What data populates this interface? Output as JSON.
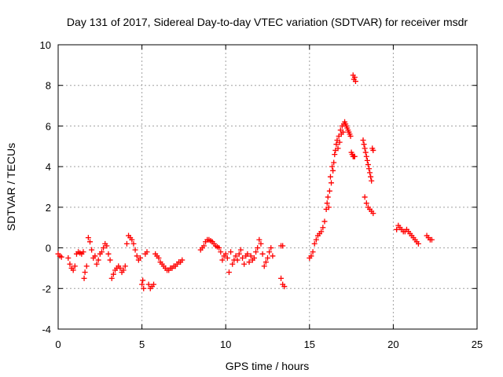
{
  "chart_data": {
    "type": "scatter",
    "title": "Day 131 of 2017, Sidereal Day-to-day VTEC variation (SDTVAR) for receiver msdr",
    "xlabel": "GPS time / hours",
    "ylabel": "SDTVAR / TECUs",
    "xlim": [
      0,
      25
    ],
    "ylim": [
      -4,
      10
    ],
    "xticks": [
      0,
      5,
      10,
      15,
      20,
      25
    ],
    "yticks": [
      -4,
      -2,
      0,
      2,
      4,
      6,
      8,
      10
    ],
    "grid": true,
    "marker": "+",
    "color": "#ff0000",
    "series": [
      {
        "name": "SDTVAR",
        "x": [
          0.0,
          0.1,
          0.2,
          0.6,
          0.7,
          0.8,
          0.9,
          1.0,
          1.1,
          1.2,
          1.3,
          1.4,
          1.5,
          1.55,
          1.6,
          1.7,
          1.8,
          1.9,
          2.0,
          2.1,
          2.2,
          2.3,
          2.4,
          2.5,
          2.6,
          2.7,
          2.8,
          2.9,
          3.0,
          3.1,
          3.2,
          3.3,
          3.4,
          3.5,
          3.6,
          3.7,
          3.8,
          3.9,
          4.0,
          4.1,
          4.2,
          4.3,
          4.4,
          4.5,
          4.6,
          4.7,
          4.8,
          4.9,
          5.0,
          5.05,
          5.1,
          5.2,
          5.3,
          5.4,
          5.5,
          5.6,
          5.7,
          5.8,
          5.9,
          6.0,
          6.1,
          6.2,
          6.3,
          6.4,
          6.5,
          6.6,
          6.7,
          6.8,
          6.9,
          7.0,
          7.1,
          7.2,
          7.3,
          7.4,
          8.5,
          8.6,
          8.7,
          8.8,
          8.9,
          9.0,
          9.1,
          9.2,
          9.3,
          9.4,
          9.5,
          9.6,
          9.7,
          9.8,
          9.9,
          10.0,
          10.1,
          10.2,
          10.3,
          10.4,
          10.5,
          10.6,
          10.7,
          10.8,
          10.9,
          11.0,
          11.1,
          11.2,
          11.3,
          11.4,
          11.5,
          11.6,
          11.7,
          11.8,
          11.9,
          12.0,
          12.1,
          12.2,
          12.3,
          12.4,
          12.5,
          12.6,
          12.7,
          12.8,
          13.3,
          13.4,
          13.3,
          13.4,
          13.5,
          15.0,
          15.1,
          15.2,
          15.3,
          15.4,
          15.5,
          15.6,
          15.7,
          15.8,
          15.9,
          16.0,
          16.05,
          16.1,
          16.15,
          16.2,
          16.25,
          16.3,
          16.35,
          16.4,
          16.45,
          16.5,
          16.55,
          16.6,
          16.65,
          16.7,
          16.75,
          16.8,
          16.85,
          16.9,
          16.95,
          17.0,
          17.05,
          17.1,
          17.15,
          17.2,
          17.25,
          17.3,
          17.35,
          17.4,
          17.45,
          17.5,
          17.55,
          17.6,
          17.65,
          17.7,
          17.6,
          17.65,
          17.7,
          17.75,
          18.2,
          18.25,
          18.3,
          18.35,
          18.4,
          18.45,
          18.5,
          18.55,
          18.6,
          18.65,
          18.7,
          18.75,
          18.8,
          18.3,
          18.4,
          18.5,
          18.6,
          18.7,
          18.8,
          20.2,
          20.3,
          20.4,
          20.5,
          20.6,
          20.7,
          20.8,
          20.9,
          21.0,
          21.1,
          21.2,
          21.3,
          21.4,
          21.5,
          22.0,
          22.1,
          22.2,
          22.3
        ],
        "y": [
          -0.3,
          -0.4,
          -0.45,
          -0.5,
          -0.8,
          -1.0,
          -1.1,
          -0.9,
          -0.3,
          -0.2,
          -0.25,
          -0.3,
          -0.2,
          -1.5,
          -1.2,
          -0.9,
          0.5,
          0.3,
          -0.1,
          -0.5,
          -0.4,
          -0.8,
          -0.6,
          -0.3,
          -0.2,
          0.0,
          0.2,
          0.1,
          -0.3,
          -0.6,
          -1.5,
          -1.3,
          -1.1,
          -1.0,
          -0.9,
          -1.0,
          -1.2,
          -1.1,
          -0.9,
          0.2,
          0.6,
          0.5,
          0.4,
          0.2,
          -0.1,
          -0.4,
          -0.6,
          -0.5,
          -1.8,
          -1.6,
          -2.0,
          -0.3,
          -0.2,
          -1.8,
          -2.0,
          -1.9,
          -1.8,
          -0.3,
          -0.4,
          -0.5,
          -0.7,
          -0.8,
          -0.9,
          -1.0,
          -1.1,
          -1.1,
          -1.0,
          -1.0,
          -0.9,
          -0.9,
          -0.8,
          -0.7,
          -0.7,
          -0.6,
          -0.1,
          0.0,
          0.1,
          0.3,
          0.4,
          0.4,
          0.35,
          0.3,
          0.2,
          0.1,
          0.05,
          0.0,
          -0.2,
          -0.6,
          -0.4,
          -0.3,
          -0.5,
          -1.2,
          -0.2,
          -0.8,
          -0.6,
          -0.4,
          -0.6,
          -0.3,
          -0.1,
          -0.5,
          -0.8,
          -0.4,
          -0.3,
          -0.7,
          -0.4,
          -0.6,
          -0.5,
          -0.2,
          0.0,
          0.4,
          0.2,
          -0.3,
          -0.9,
          -0.7,
          -0.5,
          -0.2,
          0.0,
          -0.4,
          0.1,
          0.1,
          -1.5,
          -1.8,
          -1.9,
          -0.5,
          -0.4,
          -0.2,
          0.2,
          0.4,
          0.6,
          0.7,
          0.8,
          1.0,
          1.3,
          1.9,
          2.2,
          2.5,
          2.0,
          2.8,
          3.5,
          3.2,
          4.0,
          3.8,
          4.2,
          4.6,
          4.8,
          5.1,
          5.3,
          4.9,
          5.5,
          5.2,
          5.8,
          5.6,
          6.0,
          5.7,
          6.1,
          6.2,
          6.1,
          6.0,
          5.9,
          5.8,
          5.7,
          5.6,
          5.5,
          4.7,
          4.6,
          4.5,
          4.5,
          4.5,
          8.5,
          8.3,
          8.4,
          8.2,
          5.3,
          5.1,
          4.9,
          4.7,
          4.5,
          4.3,
          4.1,
          3.9,
          3.7,
          3.5,
          3.3,
          4.9,
          4.8,
          2.5,
          2.2,
          2.0,
          1.9,
          1.8,
          1.7,
          0.9,
          1.1,
          1.0,
          0.9,
          0.8,
          0.8,
          0.9,
          0.8,
          0.7,
          0.6,
          0.5,
          0.4,
          0.3,
          0.2,
          0.6,
          0.5,
          0.4,
          0.4
        ]
      }
    ]
  }
}
